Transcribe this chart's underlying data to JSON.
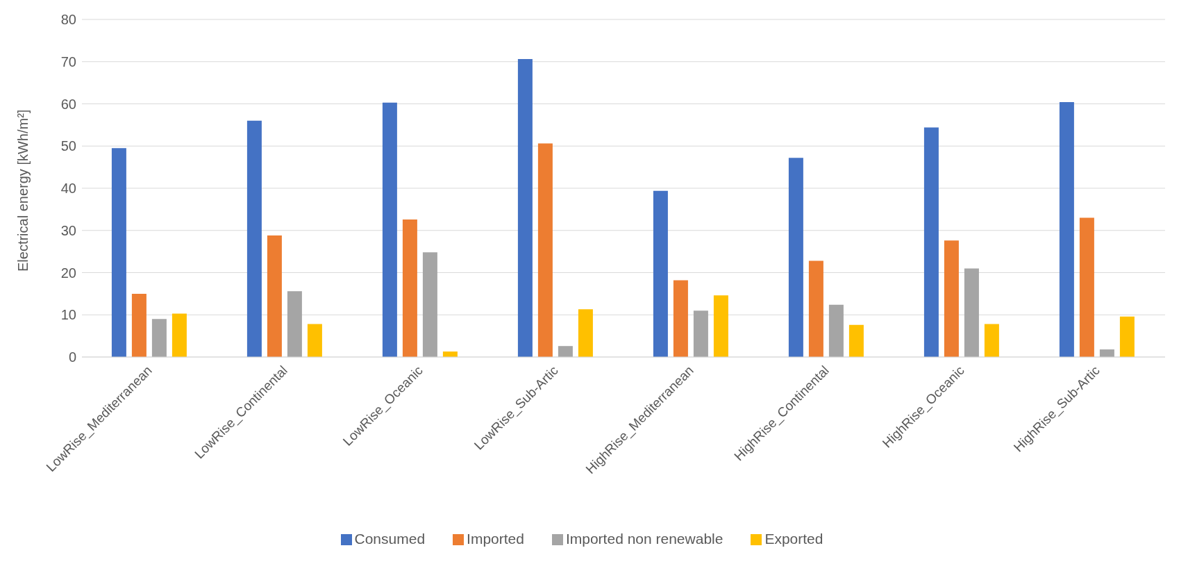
{
  "chart_data": {
    "type": "bar",
    "ylabel": "Electrical energy [kWh/m²]",
    "categories": [
      "LowRise_Mediterranean",
      "LowRise_Continental",
      "LowRise_Oceanic",
      "LowRise_Sub-Artic",
      "HighRise_Mediterranean",
      "HighRise_Continental",
      "HighRise_Oceanic",
      "HighRise_Sub-Artic"
    ],
    "series": [
      {
        "name": "Consumed",
        "color": "#4472c4",
        "values": [
          49.5,
          56,
          60.3,
          70.6,
          39.4,
          47.2,
          54.4,
          60.4
        ]
      },
      {
        "name": "Imported",
        "color": "#ed7d31",
        "values": [
          15,
          28.8,
          32.6,
          50.6,
          18.2,
          22.8,
          27.6,
          33
        ]
      },
      {
        "name": "Imported non renewable",
        "color": "#a5a5a5",
        "values": [
          9,
          15.6,
          24.8,
          2.6,
          11,
          12.4,
          21,
          1.8
        ]
      },
      {
        "name": "Exported",
        "color": "#ffc000",
        "values": [
          10.3,
          7.8,
          1.3,
          11.3,
          14.6,
          7.6,
          7.8,
          9.6
        ]
      }
    ],
    "ylim": [
      0,
      80
    ],
    "yticks": [
      0,
      10,
      20,
      30,
      40,
      50,
      60,
      70,
      80
    ],
    "grid": "y",
    "legend": "bottom"
  }
}
